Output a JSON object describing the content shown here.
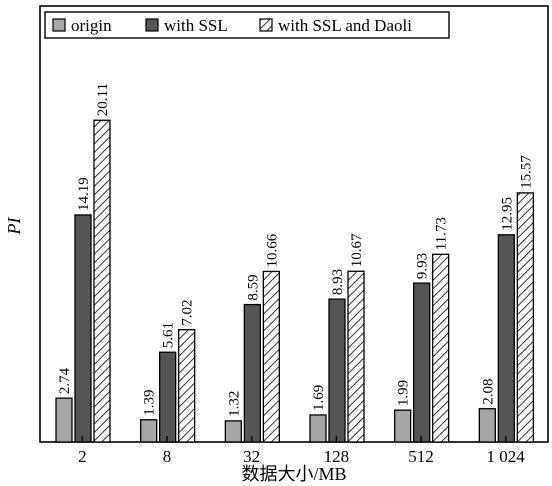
{
  "chart_data": {
    "type": "bar",
    "categories": [
      "2",
      "8",
      "32",
      "128",
      "512",
      "1 024"
    ],
    "series": [
      {
        "name": "origin",
        "values": [
          2.74,
          1.39,
          1.32,
          1.69,
          1.99,
          2.08
        ],
        "fill": "#a6a6a6",
        "pattern": "solid"
      },
      {
        "name": "with SSL",
        "values": [
          14.19,
          5.61,
          8.59,
          8.93,
          9.93,
          12.95
        ],
        "fill": "#555555",
        "pattern": "solid"
      },
      {
        "name": "with SSL and Daoli",
        "values": [
          20.11,
          7.02,
          10.66,
          10.67,
          11.73,
          15.57
        ],
        "fill": "#ffffff",
        "pattern": "diagonal-hatch"
      }
    ],
    "data_labels": [
      [
        "2.74",
        "1.39",
        "1.32",
        "1.69",
        "1.99",
        "2.08"
      ],
      [
        "14.19",
        "5.61",
        "8.59",
        "8.93",
        "9.93",
        "12.95"
      ],
      [
        "20.11",
        "7.02",
        "10.66",
        "10.67",
        "11.73",
        "15.57"
      ]
    ],
    "xlabel": "数据大小/MB",
    "ylabel": "PI",
    "ylim": [
      0,
      22
    ],
    "grid": false,
    "legend_position": "top-left",
    "y_tick_labels_shown": false
  }
}
